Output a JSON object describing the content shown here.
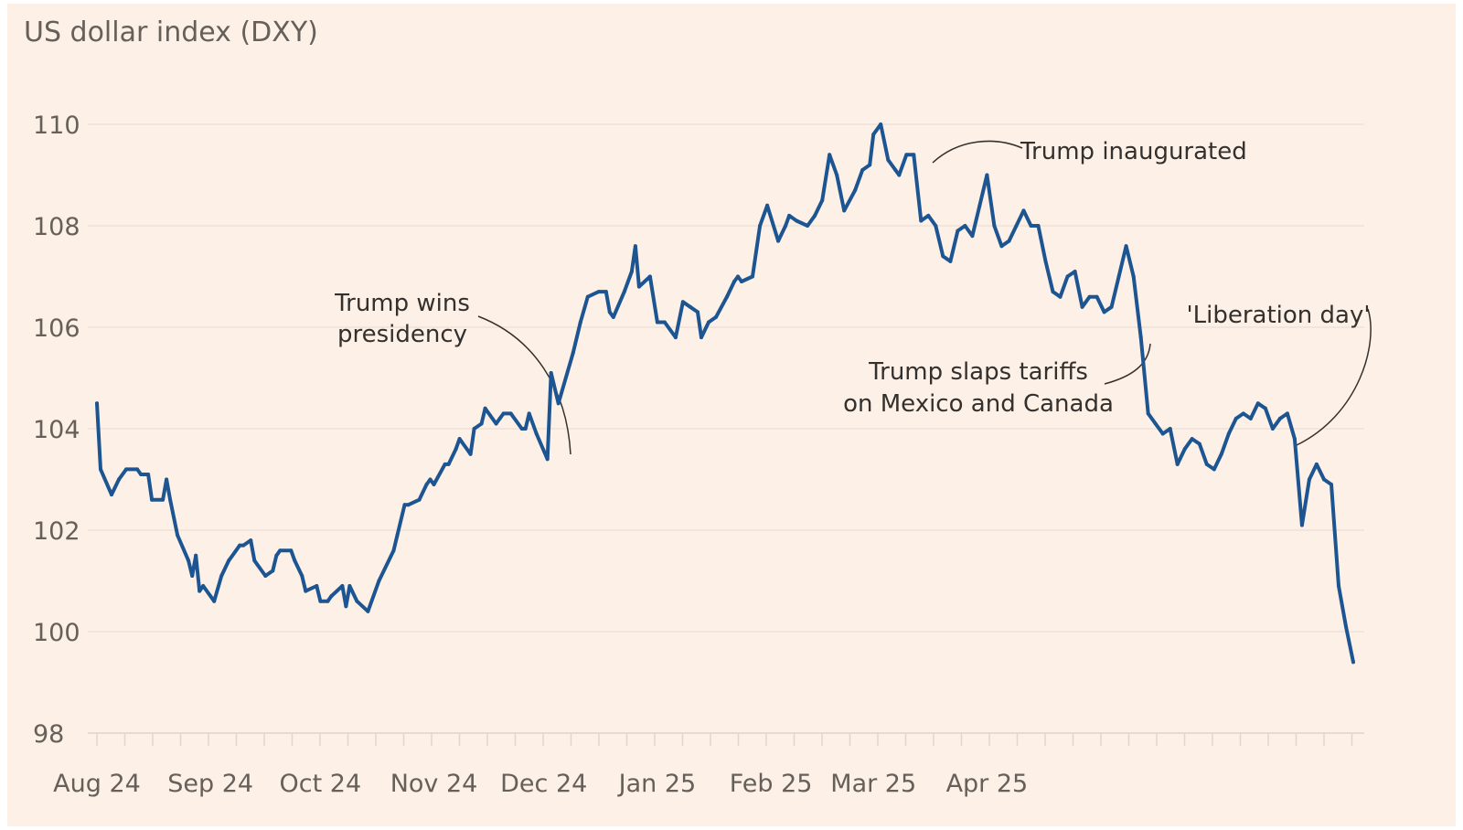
{
  "chart_data": {
    "type": "line",
    "title": "US dollar index (DXY)",
    "xlabel": "",
    "ylabel": "",
    "ylim": [
      98,
      110
    ],
    "yticks": [
      "110",
      "108",
      "106",
      "104",
      "102",
      "100",
      "98"
    ],
    "xticks": [
      {
        "label": "Aug 24",
        "date": "2024-08-01"
      },
      {
        "label": "Sep 24",
        "date": "2024-09-01"
      },
      {
        "label": "Oct 24",
        "date": "2024-10-01"
      },
      {
        "label": "Nov 24",
        "date": "2024-11-01"
      },
      {
        "label": "Dec 24",
        "date": "2024-12-01"
      },
      {
        "label": "Jan 25",
        "date": "2025-01-01"
      },
      {
        "label": "Feb 25",
        "date": "2025-02-01"
      },
      {
        "label": "Mar 25",
        "date": "2025-03-01"
      },
      {
        "label": "Apr 25",
        "date": "2025-04-01"
      }
    ],
    "grid": true,
    "line_color": "#1c5592",
    "series": [
      {
        "points": [
          [
            "2024-08-01",
            104.5
          ],
          [
            "2024-08-02",
            103.2
          ],
          [
            "2024-08-05",
            102.7
          ],
          [
            "2024-08-07",
            103.0
          ],
          [
            "2024-08-09",
            103.2
          ],
          [
            "2024-08-12",
            103.2
          ],
          [
            "2024-08-13",
            103.1
          ],
          [
            "2024-08-15",
            103.1
          ],
          [
            "2024-08-16",
            102.6
          ],
          [
            "2024-08-19",
            102.6
          ],
          [
            "2024-08-20",
            103.0
          ],
          [
            "2024-08-21",
            102.6
          ],
          [
            "2024-08-23",
            101.9
          ],
          [
            "2024-08-26",
            101.4
          ],
          [
            "2024-08-27",
            101.1
          ],
          [
            "2024-08-28",
            101.5
          ],
          [
            "2024-08-29",
            100.8
          ],
          [
            "2024-08-30",
            100.9
          ],
          [
            "2024-09-02",
            100.6
          ],
          [
            "2024-09-04",
            101.1
          ],
          [
            "2024-09-06",
            101.4
          ],
          [
            "2024-09-09",
            101.7
          ],
          [
            "2024-09-10",
            101.7
          ],
          [
            "2024-09-12",
            101.8
          ],
          [
            "2024-09-13",
            101.4
          ],
          [
            "2024-09-16",
            101.1
          ],
          [
            "2024-09-18",
            101.2
          ],
          [
            "2024-09-19",
            101.5
          ],
          [
            "2024-09-20",
            101.6
          ],
          [
            "2024-09-23",
            101.6
          ],
          [
            "2024-09-24",
            101.4
          ],
          [
            "2024-09-26",
            101.1
          ],
          [
            "2024-09-27",
            100.8
          ],
          [
            "2024-09-30",
            100.9
          ],
          [
            "2024-10-01",
            100.6
          ],
          [
            "2024-10-03",
            100.6
          ],
          [
            "2024-10-04",
            100.7
          ],
          [
            "2024-10-07",
            100.9
          ],
          [
            "2024-10-08",
            100.5
          ],
          [
            "2024-10-09",
            100.9
          ],
          [
            "2024-10-11",
            100.6
          ],
          [
            "2024-10-14",
            100.4
          ],
          [
            "2024-10-17",
            101.0
          ],
          [
            "2024-10-21",
            101.6
          ],
          [
            "2024-10-22",
            101.9
          ],
          [
            "2024-10-24",
            102.5
          ],
          [
            "2024-10-25",
            102.5
          ],
          [
            "2024-10-28",
            102.6
          ],
          [
            "2024-10-30",
            102.9
          ],
          [
            "2024-10-31",
            103.0
          ],
          [
            "2024-11-01",
            102.9
          ],
          [
            "2024-11-04",
            103.3
          ],
          [
            "2024-11-05",
            103.3
          ],
          [
            "2024-11-07",
            103.6
          ],
          [
            "2024-11-08",
            103.8
          ],
          [
            "2024-11-11",
            103.5
          ],
          [
            "2024-11-12",
            104.0
          ],
          [
            "2024-11-14",
            104.1
          ],
          [
            "2024-11-15",
            104.4
          ],
          [
            "2024-11-18",
            104.1
          ],
          [
            "2024-11-19",
            104.2
          ],
          [
            "2024-11-20",
            104.3
          ],
          [
            "2024-11-22",
            104.3
          ],
          [
            "2024-11-25",
            104.0
          ],
          [
            "2024-11-26",
            104.0
          ],
          [
            "2024-11-27",
            104.3
          ],
          [
            "2024-11-29",
            103.9
          ],
          [
            "2024-12-02",
            103.4
          ],
          [
            "2024-12-03",
            105.1
          ],
          [
            "2024-12-05",
            104.5
          ],
          [
            "2024-12-09",
            105.5
          ],
          [
            "2024-12-11",
            106.1
          ],
          [
            "2024-12-13",
            106.6
          ],
          [
            "2024-12-16",
            106.7
          ],
          [
            "2024-12-18",
            106.7
          ],
          [
            "2024-12-19",
            106.3
          ],
          [
            "2024-12-20",
            106.2
          ],
          [
            "2024-12-23",
            106.7
          ],
          [
            "2024-12-25",
            107.1
          ],
          [
            "2024-12-26",
            107.6
          ],
          [
            "2024-12-27",
            106.8
          ],
          [
            "2024-12-30",
            107.0
          ],
          [
            "2025-01-01",
            106.1
          ],
          [
            "2025-01-03",
            106.1
          ],
          [
            "2025-01-06",
            105.8
          ],
          [
            "2025-01-08",
            106.5
          ],
          [
            "2025-01-10",
            106.4
          ],
          [
            "2025-01-12",
            106.3
          ],
          [
            "2025-01-13",
            105.8
          ],
          [
            "2025-01-15",
            106.1
          ],
          [
            "2025-01-17",
            106.2
          ],
          [
            "2025-01-20",
            106.6
          ],
          [
            "2025-01-22",
            106.9
          ],
          [
            "2025-01-23",
            107.0
          ],
          [
            "2025-01-24",
            106.9
          ],
          [
            "2025-01-27",
            107.0
          ],
          [
            "2025-01-29",
            108.0
          ],
          [
            "2025-01-31",
            108.4
          ],
          [
            "2025-02-03",
            107.7
          ],
          [
            "2025-02-05",
            108.0
          ],
          [
            "2025-02-06",
            108.2
          ],
          [
            "2025-02-08",
            108.1
          ],
          [
            "2025-02-11",
            108.0
          ],
          [
            "2025-02-13",
            108.2
          ],
          [
            "2025-02-15",
            108.5
          ],
          [
            "2025-02-17",
            109.4
          ],
          [
            "2025-02-19",
            109.0
          ],
          [
            "2025-02-21",
            108.3
          ],
          [
            "2025-02-24",
            108.7
          ],
          [
            "2025-02-26",
            109.1
          ],
          [
            "2025-02-28",
            109.2
          ],
          [
            "2025-03-01",
            109.8
          ],
          [
            "2025-03-03",
            110.0
          ],
          [
            "2025-03-05",
            109.3
          ],
          [
            "2025-03-07",
            109.1
          ],
          [
            "2025-03-08",
            109.0
          ],
          [
            "2025-03-10",
            109.4
          ],
          [
            "2025-03-12",
            109.4
          ],
          [
            "2025-03-14",
            108.1
          ],
          [
            "2025-03-16",
            108.2
          ],
          [
            "2025-03-18",
            108.0
          ],
          [
            "2025-03-20",
            107.4
          ],
          [
            "2025-03-22",
            107.3
          ],
          [
            "2025-03-24",
            107.9
          ],
          [
            "2025-03-26",
            108.0
          ],
          [
            "2025-03-28",
            107.8
          ],
          [
            "2025-03-30",
            108.4
          ],
          [
            "2025-04-01",
            109.0
          ],
          [
            "2025-04-03",
            108.0
          ],
          [
            "2025-04-05",
            107.6
          ],
          [
            "2025-04-07",
            107.7
          ],
          [
            "2025-04-09",
            108.0
          ],
          [
            "2025-04-11",
            108.3
          ],
          [
            "2025-04-13",
            108.0
          ],
          [
            "2025-04-15",
            108.0
          ],
          [
            "2025-04-17",
            107.3
          ],
          [
            "2025-04-19",
            106.7
          ],
          [
            "2025-04-21",
            106.6
          ],
          [
            "2025-04-23",
            107.0
          ],
          [
            "2025-04-25",
            107.1
          ],
          [
            "2025-04-27",
            106.4
          ],
          [
            "2025-04-29",
            106.6
          ],
          [
            "2025-05-01",
            106.6
          ],
          [
            "2025-05-03",
            106.3
          ],
          [
            "2025-05-05",
            106.4
          ],
          [
            "2025-05-07",
            107.0
          ],
          [
            "2025-05-09",
            107.6
          ],
          [
            "2025-05-11",
            107.0
          ],
          [
            "2025-05-13",
            105.8
          ],
          [
            "2025-05-15",
            104.3
          ],
          [
            "2025-05-17",
            104.1
          ],
          [
            "2025-05-19",
            103.9
          ],
          [
            "2025-05-21",
            104.0
          ],
          [
            "2025-05-23",
            103.3
          ],
          [
            "2025-05-25",
            103.6
          ],
          [
            "2025-05-27",
            103.8
          ],
          [
            "2025-05-29",
            103.7
          ],
          [
            "2025-05-31",
            103.3
          ],
          [
            "2025-06-02",
            103.2
          ],
          [
            "2025-06-04",
            103.5
          ],
          [
            "2025-06-06",
            103.9
          ],
          [
            "2025-06-08",
            104.2
          ],
          [
            "2025-06-10",
            104.3
          ],
          [
            "2025-06-12",
            104.2
          ],
          [
            "2025-06-14",
            104.5
          ],
          [
            "2025-06-16",
            104.4
          ],
          [
            "2025-06-18",
            104.0
          ],
          [
            "2025-06-20",
            104.2
          ],
          [
            "2025-06-22",
            104.3
          ],
          [
            "2025-06-24",
            103.8
          ],
          [
            "2025-06-26",
            102.1
          ],
          [
            "2025-06-28",
            103.0
          ],
          [
            "2025-06-30",
            103.3
          ],
          [
            "2025-07-02",
            103.0
          ],
          [
            "2025-07-04",
            102.9
          ],
          [
            "2025-07-06",
            100.9
          ],
          [
            "2025-07-08",
            100.1
          ],
          [
            "2025-07-10",
            99.4
          ]
        ]
      }
    ],
    "annotations": [
      {
        "lines": [
          "Trump wins",
          "presidency"
        ]
      },
      {
        "lines": [
          "Trump inaugurated"
        ]
      },
      {
        "lines": [
          "Trump slaps tariffs",
          "on Mexico and Canada"
        ]
      },
      {
        "lines": [
          "'Liberation day'"
        ]
      }
    ]
  }
}
